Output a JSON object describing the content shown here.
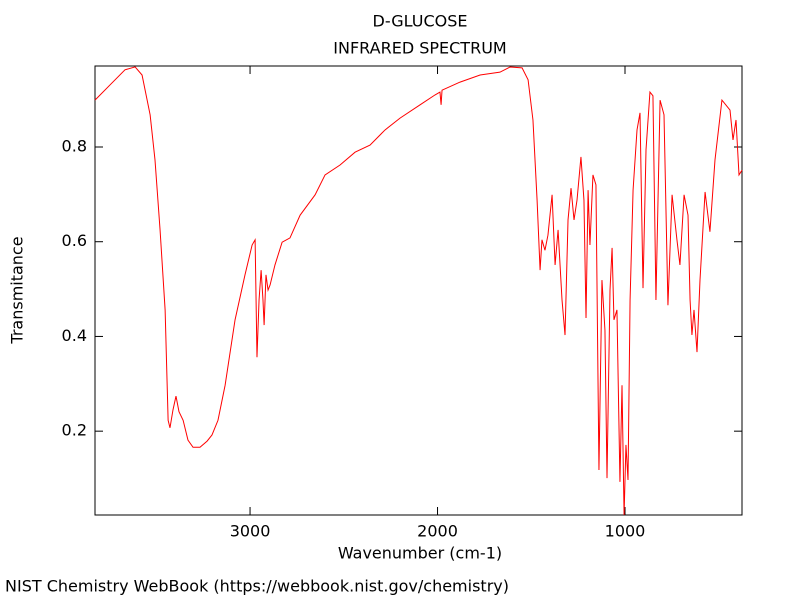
{
  "chart_data": {
    "type": "line",
    "title": "D-GLUCOSE",
    "subtitle": "INFRARED SPECTRUM",
    "x_label": "Wavenumber (cm-1)",
    "y_label": "Transmitance",
    "footer": "NIST Chemistry WebBook (https://webbook.nist.gov/chemistry)",
    "xlim": [
      3827,
      376
    ],
    "ylim": [
      0.023,
      0.971
    ],
    "xticks": [
      3000,
      2000,
      1000
    ],
    "yticks": [
      0.2,
      0.4,
      0.6,
      0.8
    ],
    "grid": false,
    "x": [
      3827,
      3747,
      3667,
      3613,
      3576,
      3533,
      3507,
      3480,
      3453,
      3437,
      3427,
      3411,
      3395,
      3379,
      3357,
      3331,
      3304,
      3267,
      3229,
      3203,
      3171,
      3133,
      3080,
      3027,
      2989,
      2973,
      2963,
      2952,
      2941,
      2931,
      2925,
      2915,
      2904,
      2893,
      2867,
      2829,
      2787,
      2733,
      2653,
      2600,
      2520,
      2440,
      2360,
      2280,
      2200,
      2093,
      2013,
      1987,
      1981,
      1976,
      1880,
      1773,
      1667,
      1613,
      1549,
      1517,
      1491,
      1469,
      1453,
      1443,
      1427,
      1411,
      1389,
      1373,
      1357,
      1336,
      1320,
      1304,
      1288,
      1272,
      1256,
      1235,
      1219,
      1208,
      1197,
      1187,
      1171,
      1155,
      1139,
      1123,
      1107,
      1096,
      1080,
      1069,
      1059,
      1043,
      1027,
      1016,
      1005,
      995,
      984,
      973,
      957,
      936,
      920,
      904,
      888,
      867,
      851,
      835,
      813,
      792,
      771,
      749,
      723,
      707,
      685,
      664,
      653,
      643,
      632,
      616,
      600,
      573,
      547,
      520,
      483,
      440,
      424,
      408,
      392,
      376
    ],
    "series": [
      {
        "color": "#ff0000",
        "values": [
          0.899,
          0.931,
          0.963,
          0.969,
          0.952,
          0.868,
          0.773,
          0.625,
          0.456,
          0.223,
          0.207,
          0.245,
          0.274,
          0.241,
          0.223,
          0.181,
          0.166,
          0.166,
          0.179,
          0.192,
          0.223,
          0.297,
          0.435,
          0.53,
          0.593,
          0.604,
          0.356,
          0.477,
          0.54,
          0.477,
          0.424,
          0.53,
          0.498,
          0.509,
          0.551,
          0.599,
          0.608,
          0.656,
          0.699,
          0.741,
          0.762,
          0.789,
          0.804,
          0.836,
          0.861,
          0.889,
          0.91,
          0.916,
          0.889,
          0.92,
          0.937,
          0.952,
          0.958,
          0.969,
          0.967,
          0.942,
          0.857,
          0.688,
          0.54,
          0.604,
          0.582,
          0.614,
          0.699,
          0.551,
          0.625,
          0.477,
          0.403,
          0.646,
          0.713,
          0.646,
          0.688,
          0.779,
          0.688,
          0.439,
          0.709,
          0.593,
          0.741,
          0.72,
          0.118,
          0.519,
          0.413,
          0.101,
          0.498,
          0.587,
          0.435,
          0.456,
          0.093,
          0.297,
          0.023,
          0.171,
          0.097,
          0.477,
          0.709,
          0.836,
          0.872,
          0.502,
          0.794,
          0.916,
          0.908,
          0.477,
          0.899,
          0.868,
          0.466,
          0.699,
          0.604,
          0.551,
          0.699,
          0.656,
          0.477,
          0.403,
          0.456,
          0.367,
          0.519,
          0.705,
          0.621,
          0.773,
          0.899,
          0.878,
          0.815,
          0.857,
          0.741,
          0.751
        ]
      }
    ]
  }
}
